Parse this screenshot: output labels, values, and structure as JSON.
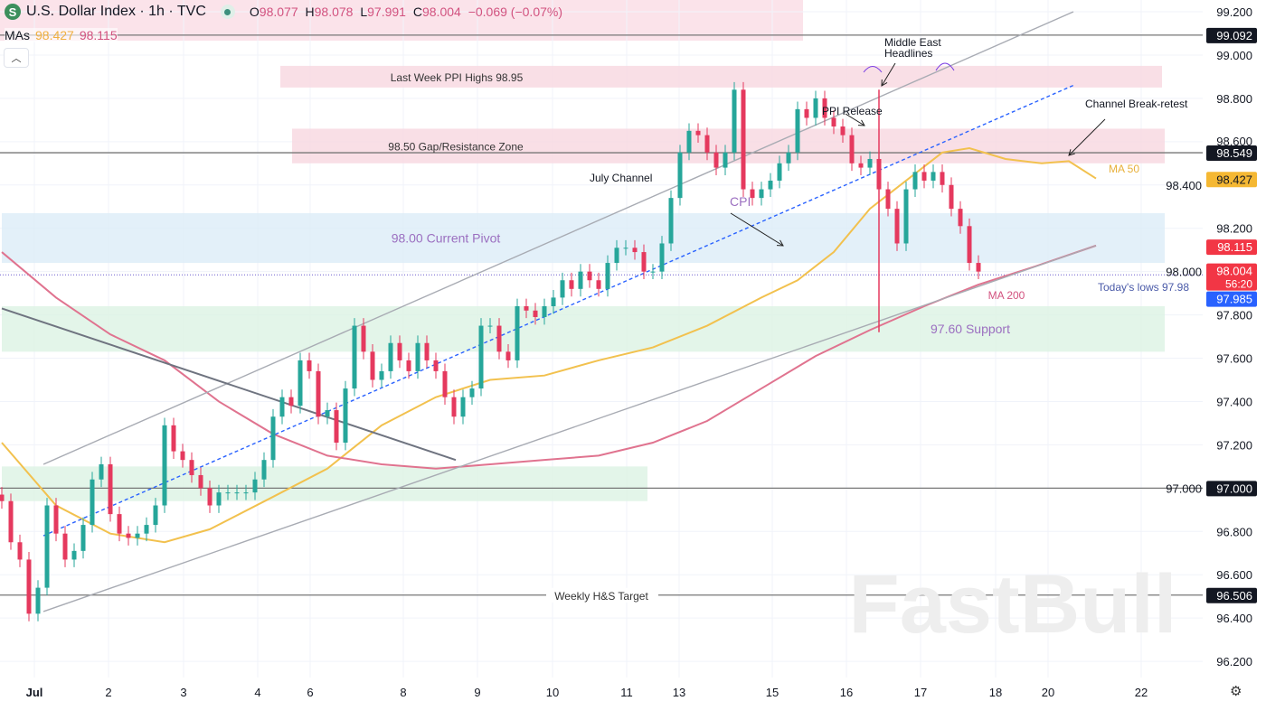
{
  "header": {
    "symbol_icon": "S",
    "title": "U.S. Dollar Index · 1h · TVC",
    "market_status": "open-dot",
    "open_label": "O",
    "open": "98.077",
    "high_label": "H",
    "high": "98.078",
    "low_label": "L",
    "low": "97.991",
    "close_label": "C",
    "close": "98.004",
    "change": "−0.069 (−0.07%)"
  },
  "mas": {
    "label": "MAs",
    "ma50": "98.427",
    "ma200": "98.115"
  },
  "colors": {
    "up": "#26a69a",
    "down": "#e5395e",
    "ma50": "#f2c14e",
    "ma200": "#e0738f",
    "pink_zone": "#f8d7e0",
    "blue_zone": "#dcecf8",
    "green_zone": "#dcf2e4",
    "badge_dark": "#131722",
    "badge_red": "#f23645",
    "badge_blue": "#2962ff",
    "badge_yellow": "#f5b833"
  },
  "watermark": "FastBull",
  "chart_data": {
    "type": "candlestick",
    "ylim": [
      96.12,
      99.25
    ],
    "y_ticks": [
      "99.200",
      "99.000",
      "98.800",
      "98.600",
      "98.400",
      "98.200",
      "98.000",
      "97.800",
      "97.600",
      "97.400",
      "97.200",
      "97.000",
      "96.800",
      "96.600",
      "96.400",
      "96.200"
    ],
    "x_ticks": [
      {
        "label": "Jul",
        "bar": 3.6
      },
      {
        "label": "2",
        "bar": 11.8
      },
      {
        "label": "3",
        "bar": 20.1
      },
      {
        "label": "4",
        "bar": 28.3
      },
      {
        "label": "6",
        "bar": 34.1
      },
      {
        "label": "8",
        "bar": 44.4
      },
      {
        "label": "9",
        "bar": 52.6
      },
      {
        "label": "10",
        "bar": 60.9
      },
      {
        "label": "11",
        "bar": 69.1
      },
      {
        "label": "13",
        "bar": 74.9
      },
      {
        "label": "15",
        "bar": 85.2
      },
      {
        "label": "16",
        "bar": 93.4
      },
      {
        "label": "17",
        "bar": 101.6
      },
      {
        "label": "18",
        "bar": 109.9
      },
      {
        "label": "20",
        "bar": 115.7
      },
      {
        "label": "22",
        "bar": 126
      }
    ],
    "closes": [
      96.94,
      96.75,
      96.67,
      96.42,
      96.54,
      96.92,
      96.79,
      96.67,
      96.71,
      96.83,
      97.04,
      97.11,
      96.88,
      96.79,
      96.77,
      96.79,
      96.83,
      96.92,
      97.29,
      97.17,
      97.13,
      97.06,
      97.0,
      96.92,
      96.98,
      96.98,
      96.98,
      96.98,
      97.04,
      97.13,
      97.33,
      97.42,
      97.38,
      97.59,
      97.54,
      97.33,
      97.36,
      97.21,
      97.46,
      97.75,
      97.63,
      97.5,
      97.54,
      97.67,
      97.59,
      97.54,
      97.67,
      97.59,
      97.54,
      97.42,
      97.33,
      97.42,
      97.46,
      97.75,
      97.75,
      97.63,
      97.59,
      97.84,
      97.82,
      97.79,
      97.84,
      97.88,
      97.96,
      97.92,
      98.0,
      97.96,
      97.92,
      98.04,
      98.11,
      98.11,
      98.09,
      98.0,
      98.0,
      98.13,
      98.34,
      98.55,
      98.65,
      98.63,
      98.55,
      98.48,
      98.55,
      98.84,
      98.38,
      98.34,
      98.38,
      98.42,
      98.5,
      98.55,
      98.75,
      98.71,
      98.8,
      98.71,
      98.67,
      98.63,
      98.5,
      98.48,
      98.52,
      98.38,
      98.29,
      98.13,
      98.38,
      98.46,
      98.42,
      98.46,
      98.4,
      98.29,
      98.21,
      98.04,
      98.0
    ],
    "spike_low": {
      "bar": 97,
      "price": 97.72
    },
    "ma50": {
      "label": "MA 50",
      "points": [
        [
          0,
          97.21
        ],
        [
          6,
          96.92
        ],
        [
          12,
          96.79
        ],
        [
          18,
          96.75
        ],
        [
          23,
          96.81
        ],
        [
          30,
          96.96
        ],
        [
          36,
          97.09
        ],
        [
          42,
          97.29
        ],
        [
          48,
          97.42
        ],
        [
          54,
          97.5
        ],
        [
          60,
          97.52
        ],
        [
          66,
          97.59
        ],
        [
          72,
          97.65
        ],
        [
          78,
          97.75
        ],
        [
          84,
          97.88
        ],
        [
          88,
          97.96
        ],
        [
          92,
          98.09
        ],
        [
          96,
          98.29
        ],
        [
          100,
          98.42
        ],
        [
          104,
          98.55
        ],
        [
          107,
          98.57
        ],
        [
          111,
          98.52
        ],
        [
          115,
          98.5
        ],
        [
          118,
          98.51
        ],
        [
          121,
          98.43
        ]
      ]
    },
    "ma200": {
      "label": "MA 200",
      "points": [
        [
          0,
          98.09
        ],
        [
          6,
          97.88
        ],
        [
          12,
          97.71
        ],
        [
          18,
          97.59
        ],
        [
          24,
          97.4
        ],
        [
          30,
          97.25
        ],
        [
          36,
          97.15
        ],
        [
          42,
          97.11
        ],
        [
          48,
          97.09
        ],
        [
          54,
          97.11
        ],
        [
          60,
          97.13
        ],
        [
          66,
          97.15
        ],
        [
          72,
          97.21
        ],
        [
          78,
          97.31
        ],
        [
          84,
          97.46
        ],
        [
          90,
          97.61
        ],
        [
          96,
          97.73
        ],
        [
          102,
          97.84
        ],
        [
          108,
          97.94
        ],
        [
          114,
          98.02
        ],
        [
          121,
          98.12
        ]
      ]
    },
    "zones": [
      {
        "label": "Last Week PPI Highs 98.95",
        "from": 98.85,
        "to": 98.95,
        "color": "pink",
        "start": 30.8,
        "end": 128.3
      },
      {
        "label": "98.50 Gap/Resistance Zone",
        "from": 98.5,
        "to": 98.66,
        "color": "pink",
        "start": 32.1,
        "end": 128.6
      },
      {
        "label": "98.00 Current Pivot",
        "from": 98.04,
        "to": 98.27,
        "color": "blue",
        "start": 0,
        "end": 128.6
      },
      {
        "label": "97.60 Support",
        "from": 97.63,
        "to": 97.84,
        "color": "green",
        "start": 0,
        "end": 128.6
      },
      {
        "label": "",
        "from": 96.94,
        "to": 97.1,
        "color": "green",
        "start": 0,
        "end": 71.4
      }
    ],
    "hlines": [
      {
        "price": 99.092,
        "label": "",
        "badge": "99.092",
        "badge_color": "dark"
      },
      {
        "price": 98.549,
        "label": "",
        "badge": "98.549",
        "badge_color": "dark"
      },
      {
        "price": 97.0,
        "label": "",
        "badge": "97.000",
        "badge_color": "dark"
      },
      {
        "price": 96.506,
        "label": "Weekly H&S Target",
        "badge": "96.506",
        "badge_color": "dark"
      }
    ],
    "trendlines": [
      {
        "name": "channel-upper",
        "from": [
          4.6,
          97.11
        ],
        "to": [
          118.5,
          99.2
        ],
        "style": "solid"
      },
      {
        "name": "channel-lower",
        "from": [
          4.6,
          96.43
        ],
        "to": [
          121,
          98.12
        ],
        "style": "solid"
      },
      {
        "name": "channel-mid",
        "from": [
          4.6,
          96.78
        ],
        "to": [
          118.5,
          98.86
        ],
        "style": "dashed"
      },
      {
        "name": "descending",
        "from": [
          0,
          97.83
        ],
        "to": [
          50.2,
          97.13
        ],
        "style": "solid"
      }
    ],
    "annotations": {
      "channel": "July Channel",
      "ppi": "PPI Release",
      "cpi": "CPI",
      "middle_east": "Middle East",
      "headlines": "Headlines",
      "break": "Channel Break-retest",
      "todays_lows": "Today's lows 97.98"
    },
    "badges": {
      "ma50": "98.427",
      "ma200": "98.115",
      "last": "98.004",
      "countdown": "56:20",
      "low": "97.985"
    }
  }
}
